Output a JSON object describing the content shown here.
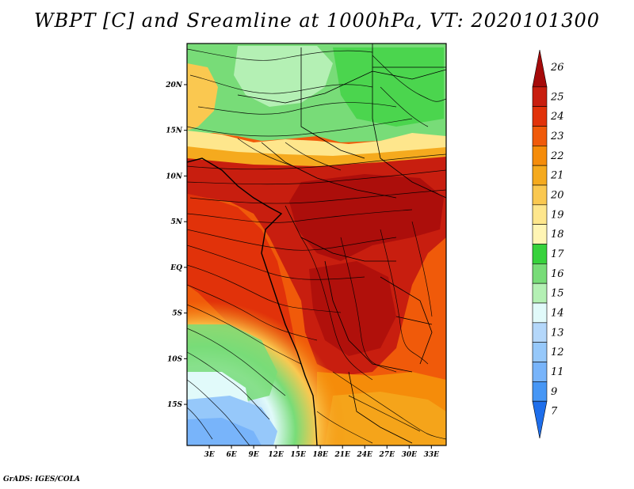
{
  "title": "WBPT [C] and Sreamline at 1000hPa, VT: 2020101300",
  "credit": "GrADS: IGES/COLA",
  "map": {
    "lat_range": [
      -19.5,
      24.5
    ],
    "lon_range": [
      0,
      35
    ],
    "lat_ticks": [
      {
        "value": 20,
        "label": "20N"
      },
      {
        "value": 15,
        "label": "15N"
      },
      {
        "value": 10,
        "label": "10N"
      },
      {
        "value": 5,
        "label": "5N"
      },
      {
        "value": 0,
        "label": "EQ"
      },
      {
        "value": -5,
        "label": "5S"
      },
      {
        "value": -10,
        "label": "10S"
      },
      {
        "value": -15,
        "label": "15S"
      }
    ],
    "lon_ticks": [
      {
        "value": 3,
        "label": "3E"
      },
      {
        "value": 6,
        "label": "6E"
      },
      {
        "value": 9,
        "label": "9E"
      },
      {
        "value": 12,
        "label": "12E"
      },
      {
        "value": 15,
        "label": "15E"
      },
      {
        "value": 18,
        "label": "18E"
      },
      {
        "value": 21,
        "label": "21E"
      },
      {
        "value": 24,
        "label": "24E"
      },
      {
        "value": 27,
        "label": "27E"
      },
      {
        "value": 30,
        "label": "30E"
      },
      {
        "value": 33,
        "label": "33E"
      }
    ]
  },
  "colorbar": {
    "labels": [
      "26",
      "25",
      "24",
      "23",
      "22",
      "21",
      "20",
      "19",
      "18",
      "17",
      "16",
      "15",
      "14",
      "13",
      "12",
      "11",
      "9",
      "7"
    ],
    "colors": [
      "#a50a0a",
      "#c81e0f",
      "#e1320a",
      "#f05a0a",
      "#f58c0a",
      "#f5aa1e",
      "#fac850",
      "#fee68c",
      "#fff5b4",
      "#37d23c",
      "#78dc78",
      "#b4f0b4",
      "#e1fafa",
      "#b4d7fa",
      "#96c8fa",
      "#78b4fa",
      "#4696f5",
      "#1e6eeb"
    ]
  }
}
